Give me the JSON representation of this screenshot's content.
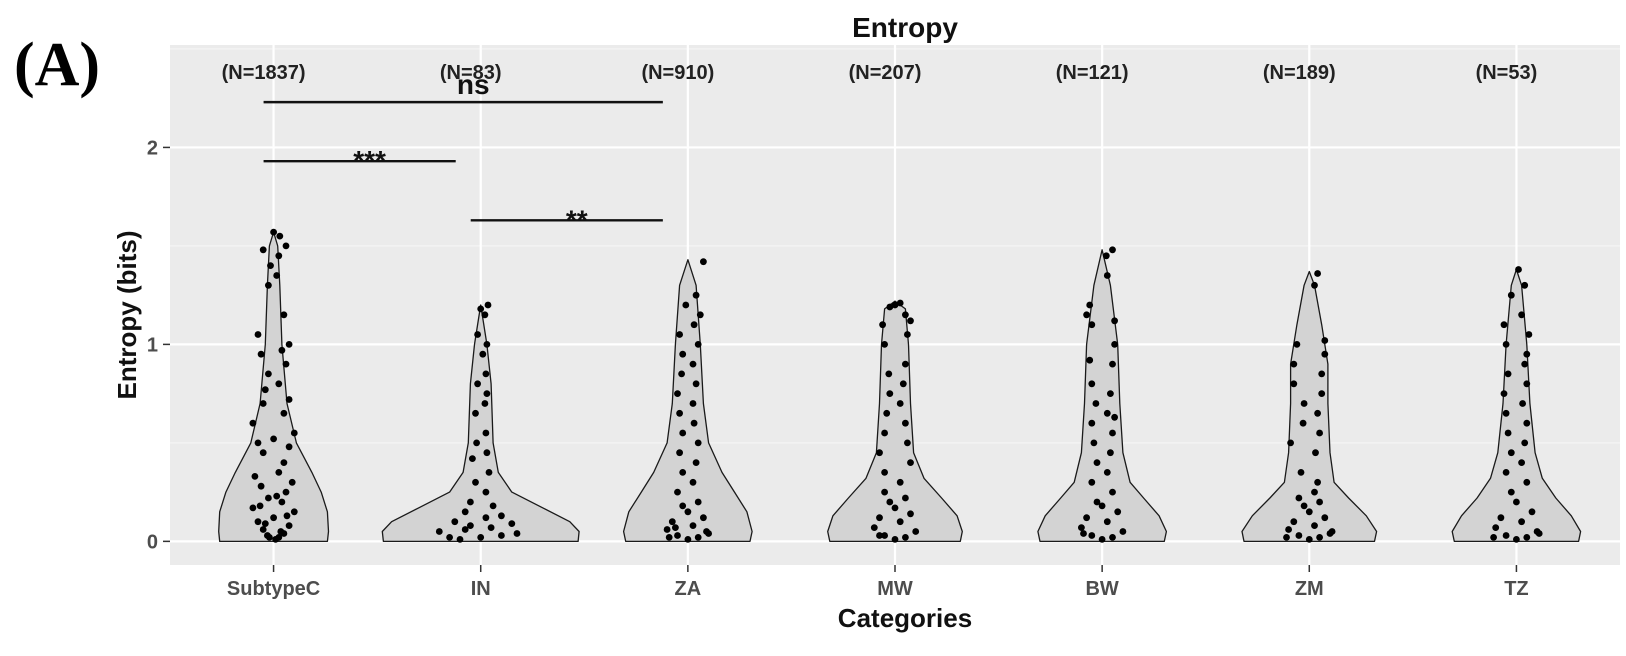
{
  "panel_label": "(A)",
  "chart_data": {
    "type": "violin",
    "title": "Entropy",
    "xlabel": "Categories",
    "ylabel": "Entropy (bits)",
    "ylim": [
      -0.12,
      2.52
    ],
    "yticks": [
      0,
      1,
      2
    ],
    "grid": true,
    "background": "#ebebeb",
    "violin_fill": "#d3d3d3",
    "point_color": "#000000",
    "categories": [
      "SubtypeC",
      "IN",
      "ZA",
      "MW",
      "BW",
      "ZM",
      "TZ"
    ],
    "counts": [
      "(N=1837)",
      "(N=83)",
      "(N=910)",
      "(N=207)",
      "(N=121)",
      "(N=189)",
      "(N=53)"
    ],
    "violins": [
      {
        "name": "SubtypeC",
        "max": 1.57,
        "halfwidth": [
          [
            0,
            0.52
          ],
          [
            0.05,
            0.53
          ],
          [
            0.15,
            0.52
          ],
          [
            0.25,
            0.46
          ],
          [
            0.35,
            0.37
          ],
          [
            0.5,
            0.22
          ],
          [
            0.7,
            0.13
          ],
          [
            1.0,
            0.08
          ],
          [
            1.3,
            0.06
          ],
          [
            1.5,
            0.04
          ],
          [
            1.57,
            0
          ]
        ]
      },
      {
        "name": "IN",
        "max": 1.2,
        "halfwidth": [
          [
            0,
            0.94
          ],
          [
            0.05,
            0.95
          ],
          [
            0.1,
            0.86
          ],
          [
            0.17,
            0.6
          ],
          [
            0.25,
            0.3
          ],
          [
            0.35,
            0.17
          ],
          [
            0.5,
            0.12
          ],
          [
            0.8,
            0.1
          ],
          [
            1.0,
            0.06
          ],
          [
            1.2,
            0
          ]
        ]
      },
      {
        "name": "ZA",
        "max": 1.43,
        "halfwidth": [
          [
            0,
            0.6
          ],
          [
            0.05,
            0.62
          ],
          [
            0.15,
            0.57
          ],
          [
            0.25,
            0.45
          ],
          [
            0.35,
            0.33
          ],
          [
            0.5,
            0.2
          ],
          [
            0.7,
            0.15
          ],
          [
            1.0,
            0.12
          ],
          [
            1.3,
            0.08
          ],
          [
            1.43,
            0
          ]
        ]
      },
      {
        "name": "MW",
        "max": 1.22,
        "halfwidth": [
          [
            0,
            0.63
          ],
          [
            0.05,
            0.65
          ],
          [
            0.13,
            0.6
          ],
          [
            0.22,
            0.45
          ],
          [
            0.32,
            0.28
          ],
          [
            0.45,
            0.18
          ],
          [
            0.7,
            0.15
          ],
          [
            1.0,
            0.13
          ],
          [
            1.18,
            0.1
          ],
          [
            1.22,
            0
          ]
        ]
      },
      {
        "name": "BW",
        "max": 1.48,
        "halfwidth": [
          [
            0,
            0.6
          ],
          [
            0.05,
            0.62
          ],
          [
            0.13,
            0.55
          ],
          [
            0.22,
            0.4
          ],
          [
            0.3,
            0.27
          ],
          [
            0.45,
            0.2
          ],
          [
            0.7,
            0.17
          ],
          [
            1.0,
            0.15
          ],
          [
            1.3,
            0.08
          ],
          [
            1.48,
            0
          ]
        ]
      },
      {
        "name": "ZM",
        "max": 1.37,
        "halfwidth": [
          [
            0,
            0.63
          ],
          [
            0.05,
            0.65
          ],
          [
            0.13,
            0.55
          ],
          [
            0.22,
            0.38
          ],
          [
            0.3,
            0.24
          ],
          [
            0.45,
            0.2
          ],
          [
            0.7,
            0.18
          ],
          [
            0.9,
            0.18
          ],
          [
            1.1,
            0.12
          ],
          [
            1.3,
            0.05
          ],
          [
            1.37,
            0
          ]
        ]
      },
      {
        "name": "TZ",
        "max": 1.38,
        "halfwidth": [
          [
            0,
            0.6
          ],
          [
            0.05,
            0.62
          ],
          [
            0.13,
            0.53
          ],
          [
            0.22,
            0.38
          ],
          [
            0.32,
            0.25
          ],
          [
            0.45,
            0.18
          ],
          [
            0.7,
            0.13
          ],
          [
            1.0,
            0.1
          ],
          [
            1.3,
            0.05
          ],
          [
            1.38,
            0
          ]
        ]
      }
    ],
    "points": [
      [
        [
          0.02,
          0.01
        ],
        [
          0.05,
          0.02
        ],
        [
          -0.06,
          0.03
        ],
        [
          0.1,
          0.04
        ],
        [
          -0.1,
          0.06
        ],
        [
          0.15,
          0.08
        ],
        [
          -0.15,
          0.1
        ],
        [
          0.0,
          0.12
        ],
        [
          0.2,
          0.15
        ],
        [
          -0.2,
          0.17
        ],
        [
          0.08,
          0.2
        ],
        [
          -0.05,
          0.22
        ],
        [
          0.12,
          0.25
        ],
        [
          -0.12,
          0.28
        ],
        [
          0.18,
          0.3
        ],
        [
          -0.18,
          0.33
        ],
        [
          0.05,
          0.35
        ],
        [
          0.1,
          0.4
        ],
        [
          -0.1,
          0.45
        ],
        [
          0.15,
          0.48
        ],
        [
          -0.15,
          0.5
        ],
        [
          0.0,
          0.52
        ],
        [
          0.2,
          0.55
        ],
        [
          -0.2,
          0.6
        ],
        [
          0.1,
          0.65
        ],
        [
          -0.1,
          0.7
        ],
        [
          0.15,
          0.72
        ],
        [
          -0.08,
          0.77
        ],
        [
          0.05,
          0.8
        ],
        [
          -0.05,
          0.85
        ],
        [
          0.12,
          0.9
        ],
        [
          -0.12,
          0.95
        ],
        [
          0.08,
          0.97
        ],
        [
          0.15,
          1.0
        ],
        [
          -0.15,
          1.05
        ],
        [
          0.1,
          1.15
        ],
        [
          -0.05,
          1.3
        ],
        [
          0.03,
          1.35
        ],
        [
          -0.03,
          1.4
        ],
        [
          0.05,
          1.45
        ],
        [
          -0.1,
          1.48
        ],
        [
          0.12,
          1.5
        ],
        [
          0.0,
          1.57
        ],
        [
          0.06,
          1.55
        ],
        [
          -0.04,
          0.02
        ],
        [
          0.07,
          0.05
        ],
        [
          -0.08,
          0.09
        ],
        [
          0.13,
          0.13
        ],
        [
          -0.13,
          0.18
        ],
        [
          0.03,
          0.23
        ]
      ],
      [
        [
          -0.2,
          0.01
        ],
        [
          0.0,
          0.02
        ],
        [
          0.2,
          0.03
        ],
        [
          -0.4,
          0.05
        ],
        [
          0.1,
          0.07
        ],
        [
          -0.1,
          0.08
        ],
        [
          0.3,
          0.09
        ],
        [
          -0.25,
          0.1
        ],
        [
          0.05,
          0.12
        ],
        [
          0.2,
          0.13
        ],
        [
          -0.15,
          0.15
        ],
        [
          0.12,
          0.18
        ],
        [
          -0.1,
          0.2
        ],
        [
          0.05,
          0.25
        ],
        [
          -0.05,
          0.3
        ],
        [
          0.08,
          0.35
        ],
        [
          -0.08,
          0.42
        ],
        [
          0.06,
          0.45
        ],
        [
          -0.04,
          0.5
        ],
        [
          0.05,
          0.55
        ],
        [
          -0.05,
          0.65
        ],
        [
          0.04,
          0.7
        ],
        [
          0.06,
          0.75
        ],
        [
          -0.03,
          0.8
        ],
        [
          0.05,
          0.85
        ],
        [
          0.02,
          0.95
        ],
        [
          0.06,
          1.0
        ],
        [
          -0.03,
          1.05
        ],
        [
          0.04,
          1.15
        ],
        [
          0.0,
          1.18
        ],
        [
          0.07,
          1.2
        ],
        [
          -0.3,
          0.02
        ],
        [
          0.35,
          0.04
        ],
        [
          -0.15,
          0.06
        ]
      ],
      [
        [
          0.0,
          0.01
        ],
        [
          0.1,
          0.02
        ],
        [
          -0.1,
          0.03
        ],
        [
          0.2,
          0.04
        ],
        [
          -0.2,
          0.06
        ],
        [
          0.05,
          0.08
        ],
        [
          -0.15,
          0.1
        ],
        [
          0.15,
          0.12
        ],
        [
          0.0,
          0.15
        ],
        [
          -0.05,
          0.18
        ],
        [
          0.1,
          0.2
        ],
        [
          -0.1,
          0.25
        ],
        [
          0.05,
          0.3
        ],
        [
          -0.05,
          0.35
        ],
        [
          0.08,
          0.4
        ],
        [
          -0.08,
          0.45
        ],
        [
          0.1,
          0.5
        ],
        [
          -0.05,
          0.55
        ],
        [
          0.06,
          0.6
        ],
        [
          -0.08,
          0.65
        ],
        [
          0.05,
          0.7
        ],
        [
          -0.1,
          0.75
        ],
        [
          0.08,
          0.8
        ],
        [
          -0.06,
          0.85
        ],
        [
          0.05,
          0.9
        ],
        [
          -0.05,
          0.95
        ],
        [
          0.1,
          1.0
        ],
        [
          -0.08,
          1.05
        ],
        [
          0.06,
          1.1
        ],
        [
          0.12,
          1.15
        ],
        [
          -0.02,
          1.2
        ],
        [
          0.08,
          1.25
        ],
        [
          0.15,
          1.42
        ],
        [
          -0.18,
          0.02
        ],
        [
          0.18,
          0.05
        ],
        [
          -0.12,
          0.07
        ]
      ],
      [
        [
          0.0,
          0.01
        ],
        [
          0.1,
          0.02
        ],
        [
          -0.1,
          0.03
        ],
        [
          0.2,
          0.05
        ],
        [
          -0.2,
          0.07
        ],
        [
          0.05,
          0.1
        ],
        [
          -0.15,
          0.12
        ],
        [
          0.15,
          0.14
        ],
        [
          0.0,
          0.17
        ],
        [
          -0.05,
          0.2
        ],
        [
          0.1,
          0.22
        ],
        [
          -0.1,
          0.25
        ],
        [
          0.05,
          0.3
        ],
        [
          -0.1,
          0.35
        ],
        [
          0.15,
          0.4
        ],
        [
          -0.15,
          0.45
        ],
        [
          0.12,
          0.5
        ],
        [
          -0.1,
          0.55
        ],
        [
          0.1,
          0.6
        ],
        [
          -0.08,
          0.65
        ],
        [
          0.05,
          0.7
        ],
        [
          -0.05,
          0.75
        ],
        [
          0.08,
          0.8
        ],
        [
          -0.06,
          0.85
        ],
        [
          0.1,
          0.9
        ],
        [
          -0.1,
          1.0
        ],
        [
          0.12,
          1.05
        ],
        [
          -0.12,
          1.1
        ],
        [
          0.1,
          1.15
        ],
        [
          0.0,
          1.2
        ],
        [
          0.05,
          1.21
        ],
        [
          -0.05,
          1.19
        ],
        [
          0.15,
          1.12
        ],
        [
          -0.15,
          0.03
        ]
      ],
      [
        [
          0.0,
          0.01
        ],
        [
          0.1,
          0.02
        ],
        [
          -0.1,
          0.03
        ],
        [
          0.2,
          0.05
        ],
        [
          -0.2,
          0.07
        ],
        [
          0.05,
          0.1
        ],
        [
          -0.15,
          0.12
        ],
        [
          0.15,
          0.15
        ],
        [
          0.0,
          0.18
        ],
        [
          -0.05,
          0.2
        ],
        [
          0.1,
          0.25
        ],
        [
          -0.1,
          0.3
        ],
        [
          0.05,
          0.35
        ],
        [
          -0.05,
          0.4
        ],
        [
          0.08,
          0.45
        ],
        [
          -0.08,
          0.5
        ],
        [
          0.1,
          0.55
        ],
        [
          -0.1,
          0.6
        ],
        [
          0.12,
          0.63
        ],
        [
          0.05,
          0.65
        ],
        [
          -0.06,
          0.7
        ],
        [
          0.08,
          0.75
        ],
        [
          -0.1,
          0.8
        ],
        [
          0.1,
          0.9
        ],
        [
          -0.12,
          0.92
        ],
        [
          0.12,
          1.0
        ],
        [
          -0.1,
          1.1
        ],
        [
          0.12,
          1.12
        ],
        [
          -0.15,
          1.15
        ],
        [
          -0.12,
          1.2
        ],
        [
          0.05,
          1.35
        ],
        [
          0.1,
          1.48
        ],
        [
          0.04,
          1.45
        ],
        [
          -0.18,
          0.04
        ]
      ],
      [
        [
          0.0,
          0.01
        ],
        [
          0.1,
          0.02
        ],
        [
          -0.1,
          0.03
        ],
        [
          0.2,
          0.04
        ],
        [
          -0.2,
          0.06
        ],
        [
          0.05,
          0.08
        ],
        [
          -0.15,
          0.1
        ],
        [
          0.15,
          0.12
        ],
        [
          0.0,
          0.15
        ],
        [
          -0.05,
          0.18
        ],
        [
          0.1,
          0.2
        ],
        [
          -0.1,
          0.22
        ],
        [
          0.05,
          0.25
        ],
        [
          0.08,
          0.3
        ],
        [
          -0.08,
          0.35
        ],
        [
          0.06,
          0.45
        ],
        [
          -0.18,
          0.5
        ],
        [
          0.1,
          0.55
        ],
        [
          -0.06,
          0.6
        ],
        [
          0.08,
          0.65
        ],
        [
          -0.05,
          0.7
        ],
        [
          0.12,
          0.75
        ],
        [
          -0.15,
          0.8
        ],
        [
          0.12,
          0.85
        ],
        [
          -0.15,
          0.9
        ],
        [
          0.15,
          0.95
        ],
        [
          -0.12,
          1.0
        ],
        [
          0.15,
          1.02
        ],
        [
          0.05,
          1.3
        ],
        [
          0.08,
          1.36
        ],
        [
          -0.22,
          0.02
        ],
        [
          0.22,
          0.05
        ]
      ],
      [
        [
          0.0,
          0.01
        ],
        [
          0.1,
          0.02
        ],
        [
          -0.1,
          0.03
        ],
        [
          0.2,
          0.05
        ],
        [
          -0.2,
          0.07
        ],
        [
          0.05,
          0.1
        ],
        [
          -0.15,
          0.12
        ],
        [
          0.15,
          0.15
        ],
        [
          0.0,
          0.2
        ],
        [
          -0.05,
          0.25
        ],
        [
          0.1,
          0.3
        ],
        [
          -0.1,
          0.35
        ],
        [
          0.05,
          0.4
        ],
        [
          -0.05,
          0.45
        ],
        [
          0.08,
          0.5
        ],
        [
          -0.08,
          0.55
        ],
        [
          0.1,
          0.6
        ],
        [
          -0.1,
          0.65
        ],
        [
          0.06,
          0.7
        ],
        [
          -0.12,
          0.75
        ],
        [
          0.1,
          0.8
        ],
        [
          -0.08,
          0.85
        ],
        [
          0.08,
          0.9
        ],
        [
          0.1,
          0.95
        ],
        [
          -0.1,
          1.0
        ],
        [
          0.12,
          1.05
        ],
        [
          -0.12,
          1.1
        ],
        [
          0.05,
          1.15
        ],
        [
          -0.05,
          1.25
        ],
        [
          0.08,
          1.3
        ],
        [
          0.02,
          1.38
        ],
        [
          -0.22,
          0.02
        ],
        [
          0.22,
          0.04
        ]
      ]
    ],
    "comparisons": [
      {
        "from": "SubtypeC",
        "to": "ZA",
        "y": 2.23,
        "label": "ns"
      },
      {
        "from": "SubtypeC",
        "to": "IN",
        "y": 1.93,
        "label": "***"
      },
      {
        "from": "IN",
        "to": "ZA",
        "y": 1.63,
        "label": "**"
      }
    ]
  }
}
